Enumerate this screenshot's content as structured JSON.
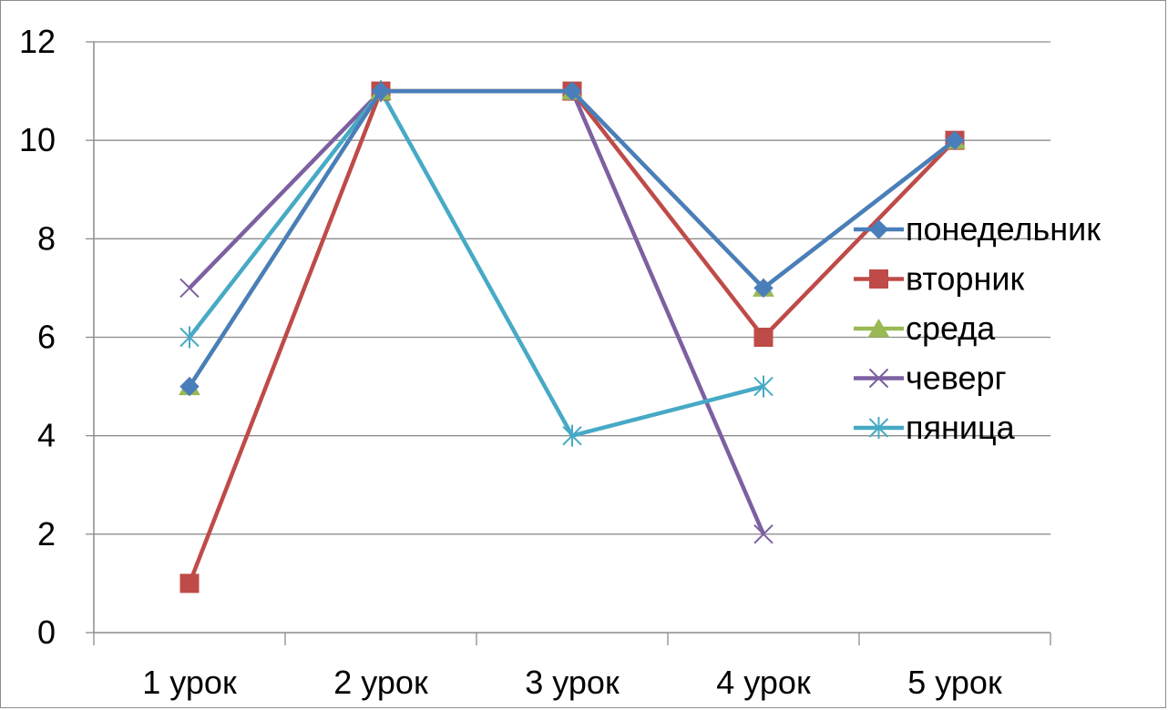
{
  "chart_data": {
    "type": "line",
    "title": "",
    "xlabel": "",
    "ylabel": "",
    "categories": [
      "1 урок",
      "2 урок",
      "3 урок",
      "4 урок",
      "5 урок"
    ],
    "ylim": [
      0,
      12
    ],
    "yticks": [
      0,
      2,
      4,
      6,
      8,
      10,
      12
    ],
    "grid": "horizontal",
    "legend_position": "right",
    "series": [
      {
        "name": "понедельник",
        "color": "#4a7ebb",
        "marker": "diamond",
        "values": [
          5,
          11,
          11,
          7,
          10
        ]
      },
      {
        "name": "вторник",
        "color": "#be4b48",
        "marker": "square",
        "values": [
          1,
          11,
          11,
          6,
          10
        ]
      },
      {
        "name": "среда",
        "color": "#98b954",
        "marker": "triangle",
        "values": [
          5,
          11,
          11,
          7,
          10
        ]
      },
      {
        "name": "чеверг",
        "color": "#7d60a0",
        "marker": "x",
        "values": [
          7,
          11,
          11,
          2,
          null
        ]
      },
      {
        "name": "пяница",
        "color": "#46aac5",
        "marker": "star",
        "values": [
          6,
          11,
          4,
          5,
          null
        ]
      }
    ]
  }
}
